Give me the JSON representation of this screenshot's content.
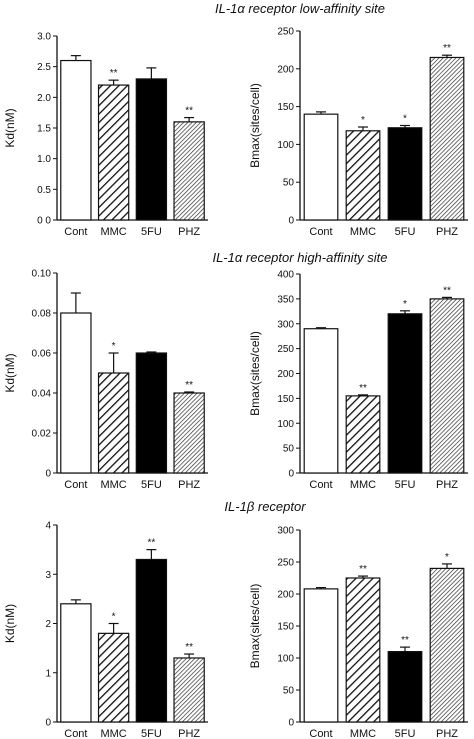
{
  "sections": [
    "IL-1α receptor low-affinity site",
    "IL-1α receptor high-affinity site",
    "IL-1β receptor"
  ],
  "chart_data": [
    {
      "type": "bar",
      "section": 0,
      "ylabel": "Kd(nM)",
      "ylim": [
        0,
        3.0
      ],
      "yticks": [
        "0 0",
        "0.5",
        "1.0",
        "1.5",
        "2.0",
        "2.5",
        "3.0"
      ],
      "ytick_values": [
        0,
        0.5,
        1,
        1.5,
        2,
        2.5,
        3
      ],
      "categories": [
        "Cont",
        "MMC",
        "5FU",
        "PHZ"
      ],
      "values": [
        2.6,
        2.2,
        2.3,
        1.6
      ],
      "errors": [
        0.08,
        0.08,
        0.18,
        0.07
      ],
      "annotations": [
        "",
        "**",
        "",
        "**"
      ]
    },
    {
      "type": "bar",
      "section": 0,
      "ylabel": "Bmax(sites/cell)",
      "ylim": [
        0,
        250
      ],
      "yticks": [
        "0",
        "50",
        "100",
        "150",
        "200",
        "250"
      ],
      "ytick_values": [
        0,
        50,
        100,
        150,
        200,
        250
      ],
      "categories": [
        "Cont",
        "MMC",
        "5FU",
        "PHZ"
      ],
      "values": [
        140,
        118,
        122,
        215
      ],
      "errors": [
        3,
        5,
        3,
        3
      ],
      "annotations": [
        "",
        "*",
        "*",
        "**"
      ]
    },
    {
      "type": "bar",
      "section": 1,
      "ylabel": "Kd(nM)",
      "ylim": [
        0,
        0.1
      ],
      "yticks": [
        "0",
        "0.02",
        "0.04",
        "0.06",
        "0.08",
        "0.10"
      ],
      "ytick_values": [
        0,
        0.02,
        0.04,
        0.06,
        0.08,
        0.1
      ],
      "categories": [
        "Cont",
        "MMC",
        "5FU",
        "PHZ"
      ],
      "values": [
        0.08,
        0.05,
        0.06,
        0.04
      ],
      "errors": [
        0.01,
        0.01,
        0.0005,
        0.0005
      ],
      "annotations": [
        "",
        "*",
        "",
        "**"
      ]
    },
    {
      "type": "bar",
      "section": 1,
      "ylabel": "Bmax(sites/cell)",
      "ylim": [
        0,
        400
      ],
      "yticks": [
        "0",
        "50",
        "100",
        "150",
        "200",
        "250",
        "300",
        "350",
        "400"
      ],
      "ytick_values": [
        0,
        50,
        100,
        150,
        200,
        250,
        300,
        350,
        400
      ],
      "categories": [
        "Cont",
        "MMC",
        "5FU",
        "PHZ"
      ],
      "values": [
        290,
        155,
        320,
        350
      ],
      "errors": [
        2,
        2,
        6,
        3
      ],
      "annotations": [
        "",
        "**",
        "*",
        "**"
      ]
    },
    {
      "type": "bar",
      "section": 2,
      "ylabel": "Kd(nM)",
      "ylim": [
        0,
        4
      ],
      "yticks": [
        "0",
        "1",
        "2",
        "3",
        "4"
      ],
      "ytick_values": [
        0,
        1,
        2,
        3,
        4
      ],
      "categories": [
        "Cont",
        "MMC",
        "5FU",
        "PHZ"
      ],
      "values": [
        2.4,
        1.8,
        3.3,
        1.3
      ],
      "errors": [
        0.08,
        0.2,
        0.2,
        0.08
      ],
      "annotations": [
        "",
        "*",
        "**",
        "**"
      ]
    },
    {
      "type": "bar",
      "section": 2,
      "ylabel": "Bmax(sites/cell)",
      "ylim": [
        0,
        300
      ],
      "yticks": [
        "0",
        "50",
        "100",
        "150",
        "200",
        "250",
        "300"
      ],
      "ytick_values": [
        0,
        50,
        100,
        150,
        200,
        250,
        300
      ],
      "categories": [
        "Cont",
        "MMC",
        "5FU",
        "PHZ"
      ],
      "values": [
        208,
        225,
        110,
        240
      ],
      "errors": [
        2,
        3,
        7,
        7
      ],
      "annotations": [
        "",
        "**",
        "**",
        "*"
      ]
    }
  ]
}
